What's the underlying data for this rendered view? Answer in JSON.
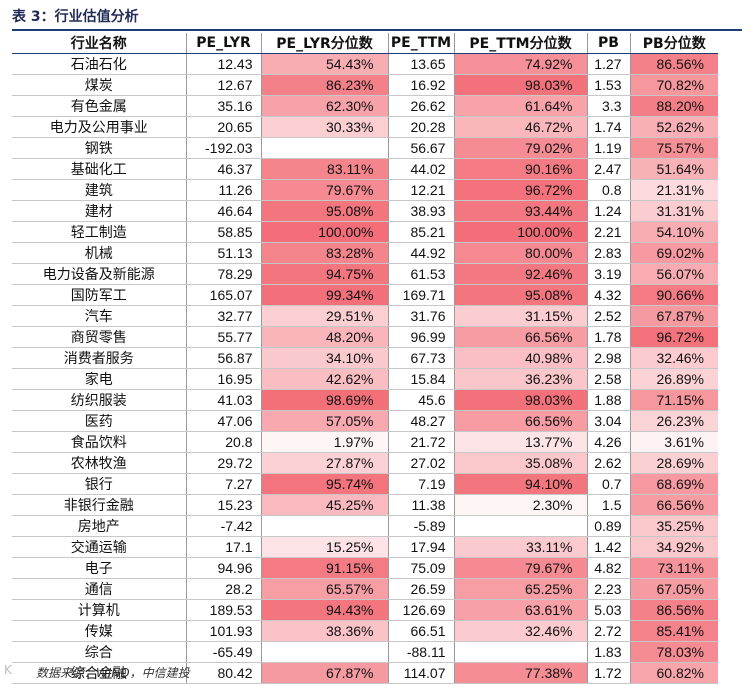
{
  "caption": "表 3：行业估值分析",
  "source": "数据来源：WIND，中信建投",
  "watermark": "K",
  "colors": {
    "heat_base": "#f04e5a",
    "rule": "#1f3c7a"
  },
  "table": {
    "headers": [
      "行业名称",
      "PE_LYR",
      "PE_LYR分位数",
      "PE_TTM",
      "PE_TTM分位数",
      "PB",
      "PB分位数"
    ],
    "rows": [
      [
        "石油石化",
        "12.43",
        "54.43%",
        "13.65",
        "74.92%",
        "1.27",
        "86.56%"
      ],
      [
        "煤炭",
        "12.67",
        "86.23%",
        "16.92",
        "98.03%",
        "1.53",
        "70.82%"
      ],
      [
        "有色金属",
        "35.16",
        "62.30%",
        "26.62",
        "61.64%",
        "3.3",
        "88.20%"
      ],
      [
        "电力及公用事业",
        "20.65",
        "30.33%",
        "20.28",
        "46.72%",
        "1.74",
        "52.62%"
      ],
      [
        "钢铁",
        "-192.03",
        "",
        "56.67",
        "79.02%",
        "1.19",
        "75.57%"
      ],
      [
        "基础化工",
        "46.37",
        "83.11%",
        "44.02",
        "90.16%",
        "2.47",
        "51.64%"
      ],
      [
        "建筑",
        "11.26",
        "79.67%",
        "12.21",
        "96.72%",
        "0.8",
        "21.31%"
      ],
      [
        "建材",
        "46.64",
        "95.08%",
        "38.93",
        "93.44%",
        "1.24",
        "31.31%"
      ],
      [
        "轻工制造",
        "58.85",
        "100.00%",
        "85.21",
        "100.00%",
        "2.21",
        "54.10%"
      ],
      [
        "机械",
        "51.13",
        "83.28%",
        "44.92",
        "80.00%",
        "2.83",
        "69.02%"
      ],
      [
        "电力设备及新能源",
        "78.29",
        "94.75%",
        "61.53",
        "92.46%",
        "3.19",
        "56.07%"
      ],
      [
        "国防军工",
        "165.07",
        "99.34%",
        "169.71",
        "95.08%",
        "4.32",
        "90.66%"
      ],
      [
        "汽车",
        "32.77",
        "29.51%",
        "31.76",
        "31.15%",
        "2.52",
        "67.87%"
      ],
      [
        "商贸零售",
        "55.77",
        "48.20%",
        "96.99",
        "66.56%",
        "1.78",
        "96.72%"
      ],
      [
        "消费者服务",
        "56.87",
        "34.10%",
        "67.73",
        "40.98%",
        "2.98",
        "32.46%"
      ],
      [
        "家电",
        "16.95",
        "42.62%",
        "15.84",
        "36.23%",
        "2.58",
        "26.89%"
      ],
      [
        "纺织服装",
        "41.03",
        "98.69%",
        "45.6",
        "98.03%",
        "1.88",
        "71.15%"
      ],
      [
        "医药",
        "47.06",
        "57.05%",
        "48.27",
        "66.56%",
        "3.04",
        "26.23%"
      ],
      [
        "食品饮料",
        "20.8",
        "1.97%",
        "21.72",
        "13.77%",
        "4.26",
        "3.61%"
      ],
      [
        "农林牧渔",
        "29.72",
        "27.87%",
        "27.02",
        "35.08%",
        "2.62",
        "28.69%"
      ],
      [
        "银行",
        "7.27",
        "95.74%",
        "7.19",
        "94.10%",
        "0.7",
        "68.69%"
      ],
      [
        "非银行金融",
        "15.23",
        "45.25%",
        "11.38",
        "2.30%",
        "1.5",
        "66.56%"
      ],
      [
        "房地产",
        "-7.42",
        "",
        "-5.89",
        "",
        "0.89",
        "35.25%"
      ],
      [
        "交通运输",
        "17.1",
        "15.25%",
        "17.94",
        "33.11%",
        "1.42",
        "34.92%"
      ],
      [
        "电子",
        "94.96",
        "91.15%",
        "75.09",
        "79.67%",
        "4.82",
        "73.11%"
      ],
      [
        "通信",
        "28.2",
        "65.57%",
        "26.59",
        "65.25%",
        "2.23",
        "67.05%"
      ],
      [
        "计算机",
        "189.53",
        "94.43%",
        "126.69",
        "63.61%",
        "5.03",
        "86.56%"
      ],
      [
        "传媒",
        "101.93",
        "38.36%",
        "66.51",
        "32.46%",
        "2.72",
        "85.41%"
      ],
      [
        "综合",
        "-65.49",
        "",
        "-88.11",
        "",
        "1.83",
        "78.03%"
      ],
      [
        "综合金融",
        "80.42",
        "67.87%",
        "114.07",
        "77.38%",
        "1.72",
        "60.82%"
      ]
    ]
  }
}
